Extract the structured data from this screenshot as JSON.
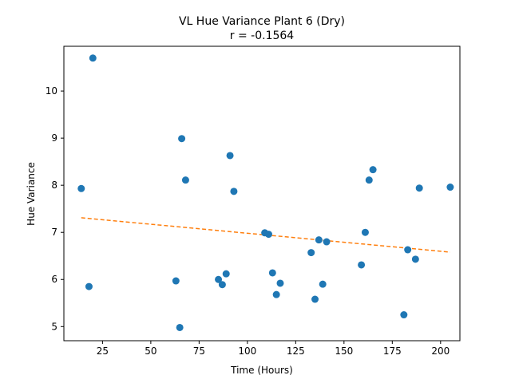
{
  "chart_data": {
    "type": "scatter",
    "title": "VL Hue Variance Plant 6 (Dry)",
    "subtitle": "r = -0.1564",
    "xlabel": "Time (Hours)",
    "ylabel": "Hue Variance",
    "xlim": [
      5,
      210
    ],
    "ylim": [
      4.7,
      10.95
    ],
    "xticks": [
      25,
      50,
      75,
      100,
      125,
      150,
      175,
      200
    ],
    "yticks": [
      5,
      6,
      7,
      8,
      9,
      10
    ],
    "grid": false,
    "colors": {
      "points": "#1f77b4",
      "trend": "#ff7f0e"
    },
    "points": [
      {
        "x": 14,
        "y": 7.93
      },
      {
        "x": 18,
        "y": 5.85
      },
      {
        "x": 20,
        "y": 10.7
      },
      {
        "x": 63,
        "y": 5.97
      },
      {
        "x": 65,
        "y": 4.98
      },
      {
        "x": 66,
        "y": 8.99
      },
      {
        "x": 68,
        "y": 8.11
      },
      {
        "x": 85,
        "y": 6.0
      },
      {
        "x": 87,
        "y": 5.89
      },
      {
        "x": 89,
        "y": 6.12
      },
      {
        "x": 91,
        "y": 8.63
      },
      {
        "x": 93,
        "y": 7.87
      },
      {
        "x": 109,
        "y": 6.99
      },
      {
        "x": 111,
        "y": 6.96
      },
      {
        "x": 113,
        "y": 6.14
      },
      {
        "x": 115,
        "y": 5.68
      },
      {
        "x": 117,
        "y": 5.92
      },
      {
        "x": 133,
        "y": 6.57
      },
      {
        "x": 135,
        "y": 5.58
      },
      {
        "x": 137,
        "y": 6.84
      },
      {
        "x": 139,
        "y": 5.9
      },
      {
        "x": 141,
        "y": 6.8
      },
      {
        "x": 159,
        "y": 6.31
      },
      {
        "x": 161,
        "y": 7.0
      },
      {
        "x": 163,
        "y": 8.11
      },
      {
        "x": 165,
        "y": 8.33
      },
      {
        "x": 181,
        "y": 5.25
      },
      {
        "x": 183,
        "y": 6.63
      },
      {
        "x": 187,
        "y": 6.43
      },
      {
        "x": 189,
        "y": 7.94
      },
      {
        "x": 205,
        "y": 7.96
      }
    ],
    "trendline": [
      {
        "x": 14,
        "y": 7.31
      },
      {
        "x": 205,
        "y": 6.58
      }
    ]
  }
}
